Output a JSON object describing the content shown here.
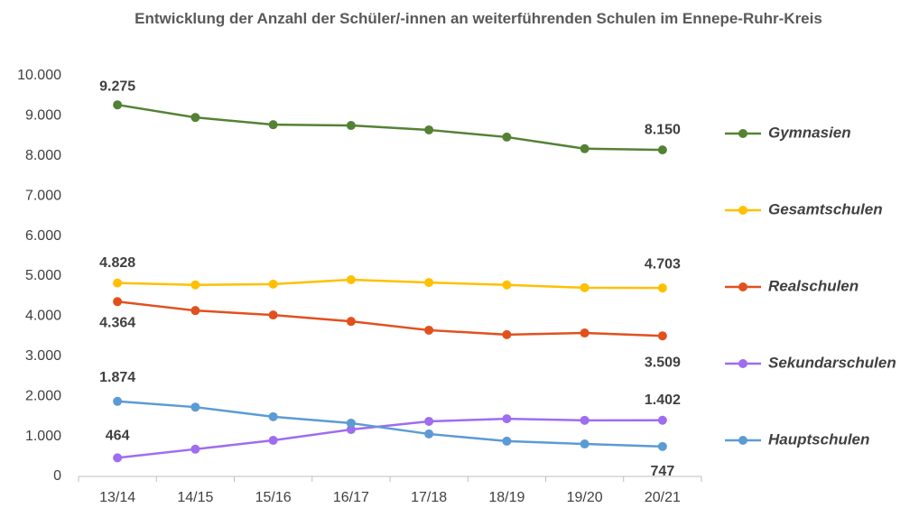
{
  "chart_data": {
    "type": "line",
    "title": "Entwicklung der Anzahl der Schüler/-innen an weiterführenden Schulen im Ennepe-Ruhr-Kreis",
    "categories": [
      "13/14",
      "14/15",
      "15/16",
      "16/17",
      "17/18",
      "18/19",
      "19/20",
      "20/21"
    ],
    "ylim": [
      0,
      10000
    ],
    "yticks": [
      0,
      {
        "value": 1000,
        "label": "1.000"
      },
      {
        "value": 2000,
        "label": "2.000"
      },
      {
        "value": 3000,
        "label": "3.000"
      },
      {
        "value": 4000,
        "label": "4.000"
      },
      {
        "value": 5000,
        "label": "5.000"
      },
      {
        "value": 6000,
        "label": "6.000"
      },
      {
        "value": 7000,
        "label": "7.000"
      },
      {
        "value": 8000,
        "label": "8.000"
      },
      {
        "value": 9000,
        "label": "9.000"
      },
      {
        "value": 10000,
        "label": "10.000"
      }
    ],
    "grid": false,
    "legend": "right",
    "series": [
      {
        "name": "Gymnasien",
        "color": "#548235",
        "values": [
          9275,
          8960,
          8780,
          8760,
          8650,
          8470,
          8180,
          8150
        ],
        "value_labels": [
          "9.275",
          null,
          null,
          null,
          null,
          null,
          null,
          "8.150"
        ]
      },
      {
        "name": "Gesamtschulen",
        "color": "#ffc000",
        "values": [
          4828,
          4780,
          4800,
          4910,
          4840,
          4780,
          4710,
          4703
        ],
        "value_labels": [
          "4.828",
          null,
          null,
          null,
          null,
          null,
          null,
          "4.703"
        ]
      },
      {
        "name": "Realschulen",
        "color": "#e2501e",
        "values": [
          4364,
          4140,
          4030,
          3870,
          3650,
          3540,
          3580,
          3509
        ],
        "value_labels": [
          "4.364",
          null,
          null,
          null,
          null,
          null,
          null,
          "3.509"
        ]
      },
      {
        "name": "Sekundarschulen",
        "color": "#9e6df0",
        "values": [
          464,
          680,
          900,
          1170,
          1375,
          1440,
          1400,
          1402
        ],
        "value_labels": [
          "464",
          null,
          null,
          null,
          null,
          null,
          null,
          "1.402"
        ]
      },
      {
        "name": "Hauptschulen",
        "color": "#5b9bd5",
        "values": [
          1874,
          1730,
          1490,
          1330,
          1060,
          880,
          810,
          747
        ],
        "value_labels": [
          "1.874",
          null,
          null,
          null,
          null,
          null,
          null,
          "747"
        ]
      }
    ]
  }
}
